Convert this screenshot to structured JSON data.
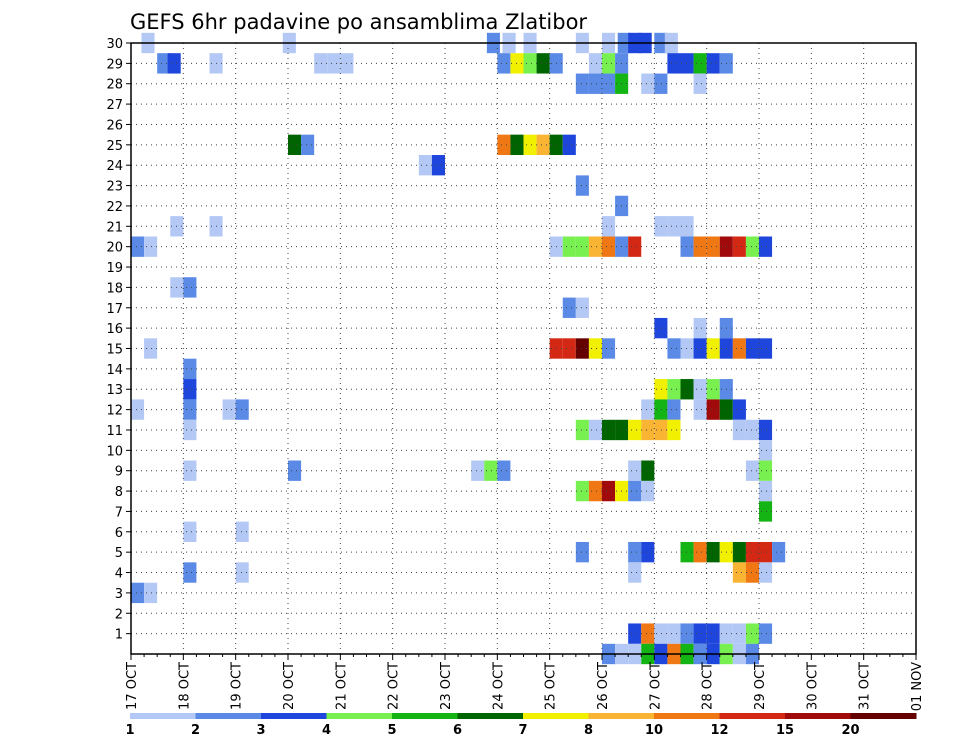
{
  "chart_data": {
    "type": "heatmap",
    "title": "GEFS 6hr padavine po ansamblima Zlatibor",
    "xlabel": "",
    "ylabel": "",
    "x_ticks": [
      "17 OCT",
      "18 OCT",
      "19 OCT",
      "20 OCT",
      "21 OCT",
      "22 OCT",
      "23 OCT",
      "24 OCT",
      "25 OCT",
      "26 OCT",
      "27 OCT",
      "28 OCT",
      "29 OCT",
      "30 OCT",
      "31 OCT",
      "01 NOV"
    ],
    "y_ticks": [
      1,
      2,
      3,
      4,
      5,
      6,
      7,
      8,
      9,
      10,
      11,
      12,
      13,
      14,
      15,
      16,
      17,
      18,
      19,
      20,
      21,
      22,
      23,
      24,
      25,
      26,
      27,
      28,
      29,
      30
    ],
    "x_range_days": [
      0,
      15
    ],
    "y_range": [
      0,
      30
    ],
    "grid": true,
    "colorbar": {
      "levels": [
        1,
        2,
        3,
        4,
        5,
        6,
        7,
        8,
        10,
        12,
        15,
        20
      ],
      "colors": [
        "#b4c8f5",
        "#5a8ae6",
        "#1e46dc",
        "#78f050",
        "#14b414",
        "#006400",
        "#f0f000",
        "#f8b432",
        "#f07814",
        "#d22814",
        "#a00a0a",
        "#640000"
      ]
    },
    "cells": [
      [
        0.2,
        30,
        0
      ],
      [
        2.9,
        30,
        0
      ],
      [
        6.8,
        30,
        1
      ],
      [
        7.1,
        30,
        0
      ],
      [
        7.5,
        30,
        0
      ],
      [
        8.5,
        30,
        0
      ],
      [
        9.0,
        30,
        0
      ],
      [
        9.3,
        30,
        1
      ],
      [
        9.5,
        30,
        2
      ],
      [
        9.7,
        30,
        2
      ],
      [
        10.0,
        30,
        1
      ],
      [
        10.2,
        30,
        0
      ],
      [
        0.5,
        29,
        1
      ],
      [
        0.7,
        29,
        2
      ],
      [
        1.5,
        29,
        0
      ],
      [
        3.5,
        29,
        0
      ],
      [
        3.75,
        29,
        0
      ],
      [
        4.0,
        29,
        0
      ],
      [
        7.0,
        29,
        1
      ],
      [
        7.25,
        29,
        6
      ],
      [
        7.5,
        29,
        3
      ],
      [
        7.75,
        29,
        5
      ],
      [
        8.0,
        29,
        1
      ],
      [
        8.75,
        29,
        0
      ],
      [
        9.0,
        29,
        3
      ],
      [
        9.25,
        29,
        1
      ],
      [
        10.25,
        29,
        2
      ],
      [
        10.5,
        29,
        2
      ],
      [
        10.75,
        29,
        4
      ],
      [
        11.0,
        29,
        2
      ],
      [
        11.25,
        29,
        1
      ],
      [
        8.5,
        28,
        1
      ],
      [
        8.75,
        28,
        1
      ],
      [
        9.0,
        28,
        1
      ],
      [
        9.25,
        28,
        4
      ],
      [
        9.75,
        28,
        0
      ],
      [
        10.0,
        28,
        1
      ],
      [
        10.75,
        28,
        0
      ],
      [
        3.0,
        25,
        5
      ],
      [
        3.25,
        25,
        1
      ],
      [
        7.0,
        25,
        8
      ],
      [
        7.25,
        25,
        5
      ],
      [
        7.5,
        25,
        6
      ],
      [
        7.75,
        25,
        7
      ],
      [
        8.0,
        25,
        5
      ],
      [
        8.25,
        25,
        2
      ],
      [
        5.5,
        24,
        0
      ],
      [
        5.75,
        24,
        2
      ],
      [
        8.5,
        23,
        1
      ],
      [
        9.25,
        22,
        1
      ],
      [
        0.75,
        21,
        0
      ],
      [
        1.5,
        21,
        0
      ],
      [
        9.0,
        21,
        0
      ],
      [
        10.0,
        21,
        0
      ],
      [
        10.25,
        21,
        0
      ],
      [
        10.5,
        21,
        0
      ],
      [
        0.0,
        20,
        1
      ],
      [
        0.25,
        20,
        0
      ],
      [
        8.0,
        20,
        0
      ],
      [
        8.25,
        20,
        3
      ],
      [
        8.5,
        20,
        3
      ],
      [
        8.75,
        20,
        7
      ],
      [
        9.0,
        20,
        8
      ],
      [
        9.25,
        20,
        1
      ],
      [
        9.5,
        20,
        9
      ],
      [
        10.5,
        20,
        1
      ],
      [
        10.75,
        20,
        8
      ],
      [
        11.0,
        20,
        8
      ],
      [
        11.25,
        20,
        10
      ],
      [
        11.5,
        20,
        9
      ],
      [
        11.75,
        20,
        3
      ],
      [
        12.0,
        20,
        2
      ],
      [
        0.75,
        18,
        0
      ],
      [
        1.0,
        18,
        1
      ],
      [
        8.25,
        17,
        1
      ],
      [
        8.5,
        17,
        0
      ],
      [
        10.0,
        16,
        2
      ],
      [
        10.75,
        16,
        0
      ],
      [
        11.25,
        16,
        1
      ],
      [
        0.25,
        15,
        0
      ],
      [
        8.0,
        15,
        9
      ],
      [
        8.25,
        15,
        9
      ],
      [
        8.5,
        15,
        11
      ],
      [
        8.75,
        15,
        6
      ],
      [
        9.0,
        15,
        1
      ],
      [
        10.25,
        15,
        1
      ],
      [
        10.5,
        15,
        0
      ],
      [
        10.75,
        15,
        2
      ],
      [
        11.0,
        15,
        6
      ],
      [
        11.25,
        15,
        2
      ],
      [
        11.5,
        15,
        8
      ],
      [
        11.75,
        15,
        2
      ],
      [
        12.0,
        15,
        2
      ],
      [
        1.0,
        14,
        1
      ],
      [
        1.0,
        13,
        2
      ],
      [
        10.0,
        13,
        6
      ],
      [
        10.25,
        13,
        3
      ],
      [
        10.5,
        13,
        5
      ],
      [
        10.75,
        13,
        0
      ],
      [
        11.0,
        13,
        3
      ],
      [
        11.25,
        13,
        1
      ],
      [
        0.0,
        12,
        0
      ],
      [
        1.0,
        12,
        1
      ],
      [
        1.75,
        12,
        0
      ],
      [
        2.0,
        12,
        1
      ],
      [
        9.75,
        12,
        0
      ],
      [
        10.0,
        12,
        4
      ],
      [
        10.25,
        12,
        1
      ],
      [
        10.75,
        12,
        0
      ],
      [
        11.0,
        12,
        10
      ],
      [
        11.25,
        12,
        5
      ],
      [
        11.5,
        12,
        2
      ],
      [
        1.0,
        11,
        0
      ],
      [
        8.5,
        11,
        3
      ],
      [
        8.75,
        11,
        0
      ],
      [
        9.0,
        11,
        5
      ],
      [
        9.25,
        11,
        5
      ],
      [
        9.5,
        11,
        6
      ],
      [
        9.75,
        11,
        7
      ],
      [
        10.0,
        11,
        7
      ],
      [
        10.25,
        11,
        6
      ],
      [
        11.5,
        11,
        0
      ],
      [
        11.75,
        11,
        0
      ],
      [
        12.0,
        11,
        2
      ],
      [
        12.0,
        10,
        0
      ],
      [
        1.0,
        9,
        0
      ],
      [
        3.0,
        9,
        1
      ],
      [
        6.5,
        9,
        0
      ],
      [
        6.75,
        9,
        3
      ],
      [
        7.0,
        9,
        1
      ],
      [
        9.5,
        9,
        0
      ],
      [
        9.75,
        9,
        5
      ],
      [
        11.75,
        9,
        0
      ],
      [
        12.0,
        9,
        3
      ],
      [
        8.5,
        8,
        3
      ],
      [
        8.75,
        8,
        8
      ],
      [
        9.0,
        8,
        10
      ],
      [
        9.25,
        8,
        6
      ],
      [
        9.5,
        8,
        1
      ],
      [
        9.75,
        8,
        0
      ],
      [
        12.0,
        8,
        0
      ],
      [
        12.0,
        7,
        4
      ],
      [
        1.0,
        6,
        0
      ],
      [
        2.0,
        6,
        0
      ],
      [
        8.5,
        5,
        1
      ],
      [
        9.5,
        5,
        1
      ],
      [
        9.75,
        5,
        2
      ],
      [
        10.5,
        5,
        4
      ],
      [
        10.75,
        5,
        8
      ],
      [
        11.0,
        5,
        5
      ],
      [
        11.25,
        5,
        6
      ],
      [
        11.5,
        5,
        5
      ],
      [
        11.75,
        5,
        9
      ],
      [
        12.0,
        5,
        9
      ],
      [
        12.25,
        5,
        1
      ],
      [
        1.0,
        4,
        1
      ],
      [
        2.0,
        4,
        0
      ],
      [
        9.5,
        4,
        0
      ],
      [
        11.5,
        4,
        7
      ],
      [
        11.75,
        4,
        8
      ],
      [
        12.0,
        4,
        0
      ],
      [
        0.0,
        3,
        1
      ],
      [
        0.25,
        3,
        0
      ],
      [
        9.5,
        1,
        2
      ],
      [
        9.75,
        1,
        8
      ],
      [
        10.0,
        1,
        0
      ],
      [
        10.25,
        1,
        0
      ],
      [
        10.5,
        1,
        1
      ],
      [
        10.75,
        1,
        2
      ],
      [
        11.0,
        1,
        2
      ],
      [
        11.25,
        1,
        0
      ],
      [
        11.5,
        1,
        0
      ],
      [
        11.75,
        1,
        3
      ],
      [
        12.0,
        1,
        1
      ],
      [
        9.0,
        0,
        1
      ],
      [
        9.25,
        0,
        0
      ],
      [
        9.5,
        0,
        0
      ],
      [
        9.75,
        0,
        4
      ],
      [
        10.0,
        0,
        2
      ],
      [
        10.25,
        0,
        8
      ],
      [
        10.5,
        0,
        4
      ],
      [
        10.75,
        0,
        1
      ],
      [
        11.0,
        0,
        2
      ],
      [
        11.25,
        0,
        3
      ],
      [
        11.5,
        0,
        0
      ],
      [
        11.75,
        0,
        1
      ]
    ]
  }
}
